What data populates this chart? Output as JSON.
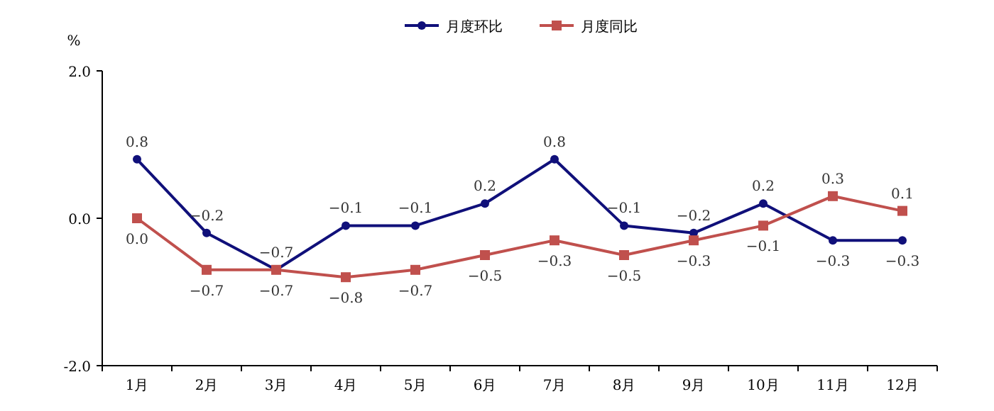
{
  "chart_data": {
    "type": "line",
    "ylabel": "%",
    "categories": [
      "1月",
      "2月",
      "3月",
      "4月",
      "5月",
      "6月",
      "7月",
      "8月",
      "9月",
      "10月",
      "11月",
      "12月"
    ],
    "series": [
      {
        "name": "月度环比",
        "color": "#10107a",
        "marker": "circle",
        "values": [
          0.8,
          -0.2,
          -0.7,
          -0.1,
          -0.1,
          0.2,
          0.8,
          -0.1,
          -0.2,
          0.2,
          -0.3,
          -0.3
        ],
        "value_labels": [
          "0.8",
          "−0.2",
          "−0.7",
          "−0.1",
          "−0.1",
          "0.2",
          "0.8",
          "−0.1",
          "−0.2",
          "0.2",
          "−0.3",
          "−0.3"
        ]
      },
      {
        "name": "月度同比",
        "color": "#c0504d",
        "marker": "square",
        "values": [
          0.0,
          -0.7,
          -0.7,
          -0.8,
          -0.7,
          -0.5,
          -0.3,
          -0.5,
          -0.3,
          -0.1,
          0.3,
          0.1
        ],
        "value_labels": [
          "0.0",
          "−0.7",
          "−0.7",
          "−0.8",
          "−0.7",
          "−0.5",
          "−0.3",
          "−0.5",
          "−0.3",
          "−0.1",
          "0.3",
          "0.1"
        ]
      }
    ],
    "ylim": [
      -2.0,
      2.0
    ],
    "yticks": [
      {
        "value": 2,
        "label": "2.0"
      },
      {
        "value": 0,
        "label": "0.0"
      },
      {
        "value": -2,
        "label": "-2.0"
      }
    ],
    "legend": "top"
  }
}
